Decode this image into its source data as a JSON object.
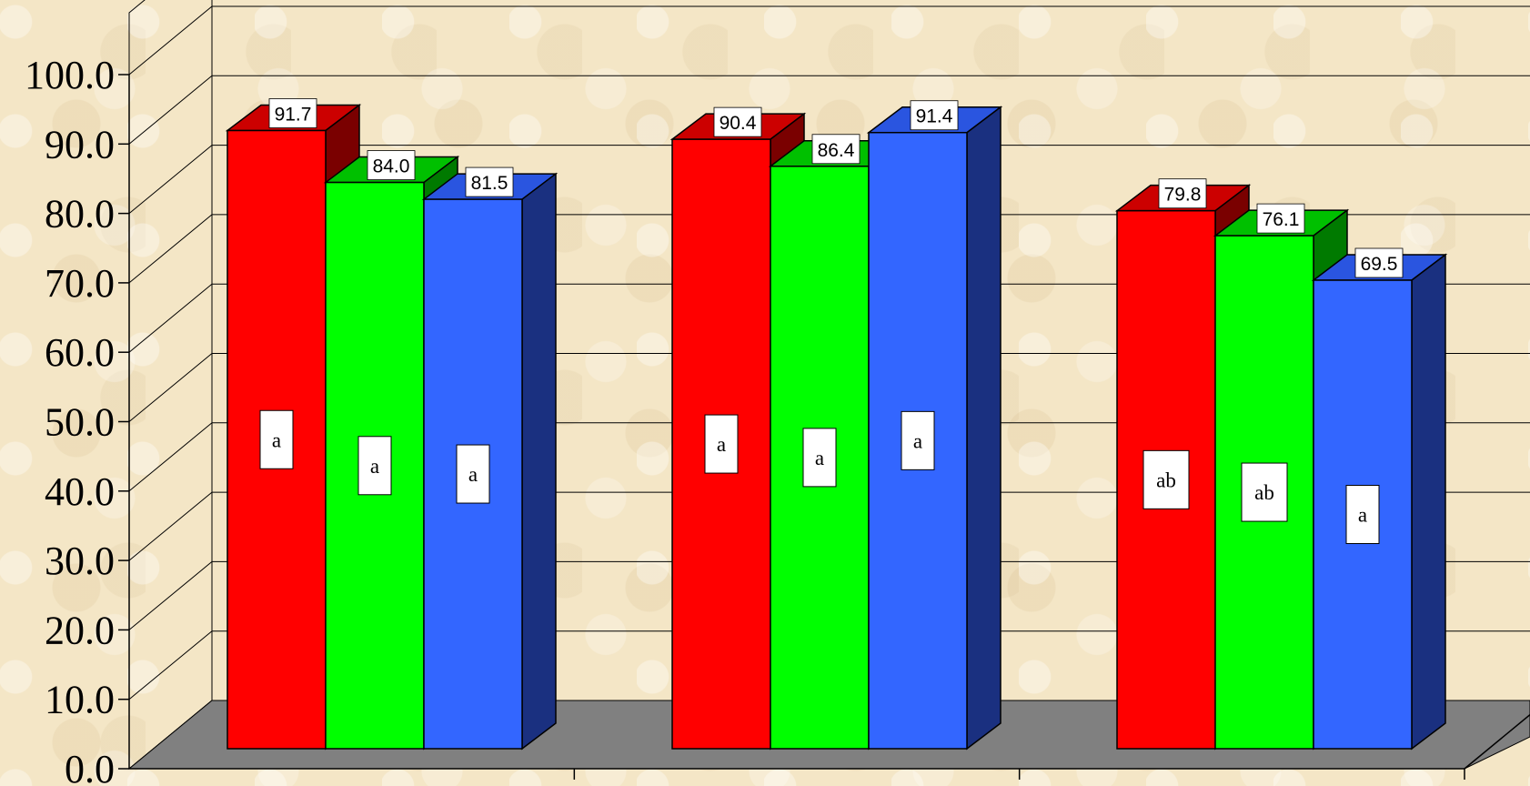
{
  "chart_data": {
    "type": "bar",
    "three_d": true,
    "categories": [
      "",
      "",
      ""
    ],
    "series": [
      {
        "values": [
          91.7,
          90.4,
          79.8
        ],
        "letters": [
          "a",
          "a",
          "ab"
        ]
      },
      {
        "values": [
          84.0,
          86.4,
          76.1
        ],
        "letters": [
          "a",
          "a",
          "ab"
        ]
      },
      {
        "values": [
          81.5,
          91.4,
          69.5
        ],
        "letters": [
          "a",
          "a",
          "a"
        ]
      }
    ],
    "value_labels": [
      [
        "91.7",
        "90.4",
        "79.8"
      ],
      [
        "84.0",
        "86.4",
        "76.1"
      ],
      [
        "81.5",
        "91.4",
        "69.5"
      ]
    ],
    "y_ticks": [
      "0.0",
      "10.0",
      "20.0",
      "30.0",
      "40.0",
      "50.0",
      "60.0",
      "70.0",
      "80.0",
      "90.0",
      "100.0"
    ],
    "ylim": [
      0,
      100
    ],
    "grid": true,
    "legend": "none",
    "colors": {
      "series_front": [
        "#ff0000",
        "#00ff00",
        "#3366ff"
      ],
      "series_top": [
        "#cc0000",
        "#00c000",
        "#2a55e0"
      ],
      "series_side": [
        "#7a0000",
        "#007a00",
        "#1a3080"
      ],
      "floor": "#808080",
      "wall": "#f4e6c6"
    }
  }
}
